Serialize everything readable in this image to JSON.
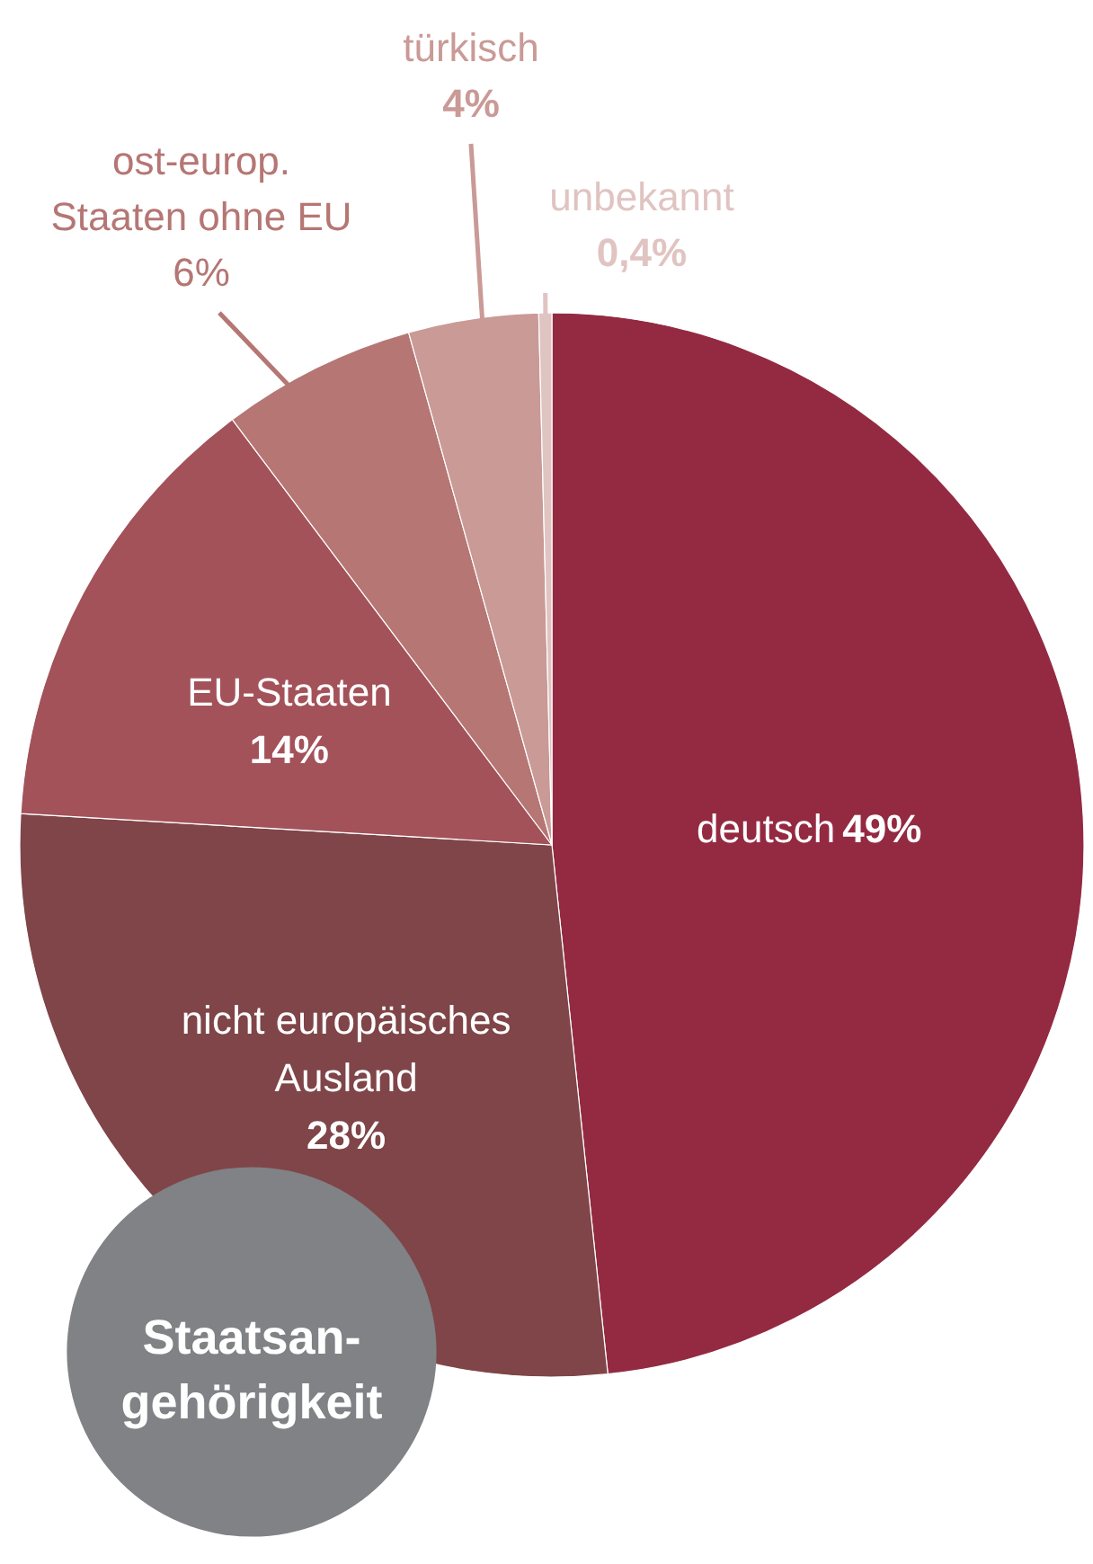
{
  "chart_data": {
    "type": "pie",
    "title": "Staatsan-\ngehörigkeit",
    "categories": [
      "deutsch",
      "nicht europäisches\nAusland",
      "EU-Staaten",
      "ost-europ.\nStaaten ohne EU",
      "türkisch",
      "unbekannt"
    ],
    "values": [
      49,
      28,
      14,
      6,
      4,
      0.4
    ],
    "value_labels": [
      "49%",
      "28%",
      "14%",
      "6%",
      "4%",
      "0,4%"
    ],
    "colors": [
      "#932a42",
      "#7f4548",
      "#a3525a",
      "#b57674",
      "#c99a96",
      "#e0c4c2"
    ]
  }
}
